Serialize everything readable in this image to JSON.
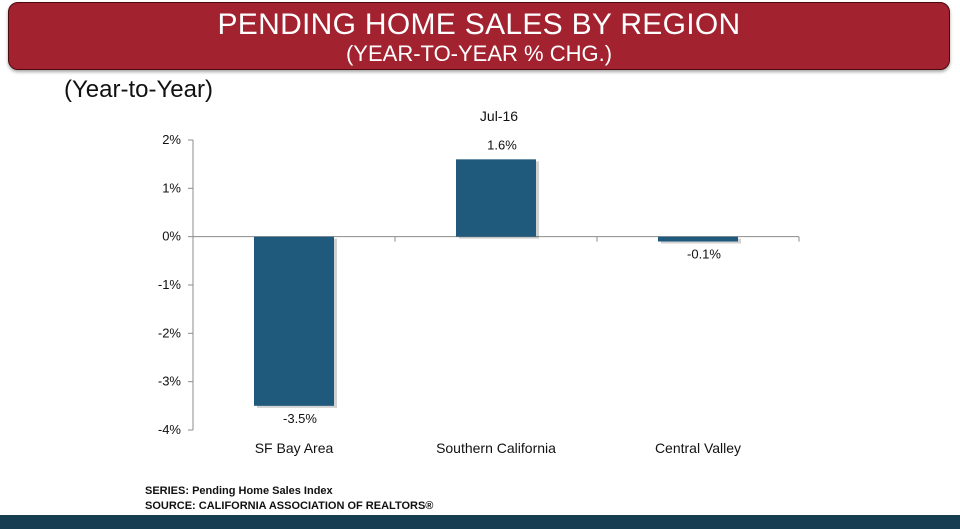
{
  "header": {
    "title": "PENDING HOME SALES BY REGION",
    "subtitle": "(YEAR-TO-YEAR % CHG.)"
  },
  "chart_subtitle": "(Year-to-Year)",
  "chart_data": {
    "type": "bar",
    "title": "Jul-16",
    "categories": [
      "SF Bay Area",
      "Southern California",
      "Central Valley"
    ],
    "values": [
      -3.5,
      1.6,
      -0.1
    ],
    "value_labels": [
      "-3.5%",
      "1.6%",
      "-0.1%"
    ],
    "ylim": [
      -4,
      2
    ],
    "yticks": [
      2,
      1,
      0,
      -1,
      -2,
      -3,
      -4
    ],
    "ytick_labels": [
      "2%",
      "1%",
      "0%",
      "-1%",
      "-2%",
      "-3%",
      "-4%"
    ],
    "xlabel": "",
    "ylabel": "",
    "grid": false,
    "bar_color": "#1f5a7d"
  },
  "footer": {
    "series": "SERIES: Pending Home Sales Index",
    "source": "SOURCE:  CALIFORNIA ASSOCIATION OF REALTORS®"
  },
  "colors": {
    "banner": "#a2222f",
    "bottom_bar": "#173d52"
  }
}
